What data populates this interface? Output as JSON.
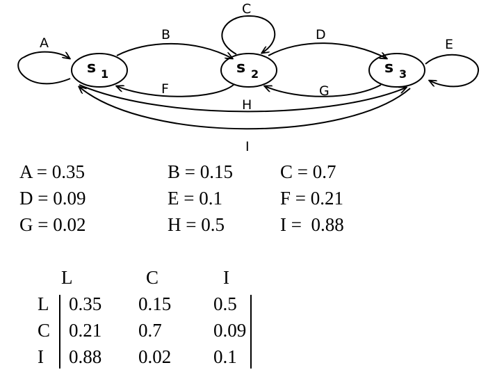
{
  "states": [
    {
      "id": "s1",
      "main": "s",
      "sub": "1"
    },
    {
      "id": "s2",
      "main": "s",
      "sub": "2"
    },
    {
      "id": "s3",
      "main": "s",
      "sub": "3"
    }
  ],
  "edge_labels": {
    "A": "A",
    "B": "B",
    "C": "C",
    "D": "D",
    "E": "E",
    "F": "F",
    "G": "G",
    "H": "H",
    "I": "I"
  },
  "probabilities": [
    [
      "A = 0.35",
      "B = 0.15",
      "C = 0.7"
    ],
    [
      "D = 0.09",
      "E = 0.1",
      "F = 0.21"
    ],
    [
      "G = 0.02",
      "H = 0.5",
      "I =  0.88"
    ]
  ],
  "matrix": {
    "col_headers": [
      "L",
      "C",
      "I"
    ],
    "row_headers": [
      "L",
      "C",
      "I"
    ],
    "rows": [
      [
        "0.35",
        "0.15",
        "0.5"
      ],
      [
        "0.21",
        "0.7",
        "0.09"
      ],
      [
        "0.88",
        "0.02",
        "0.1"
      ]
    ]
  }
}
